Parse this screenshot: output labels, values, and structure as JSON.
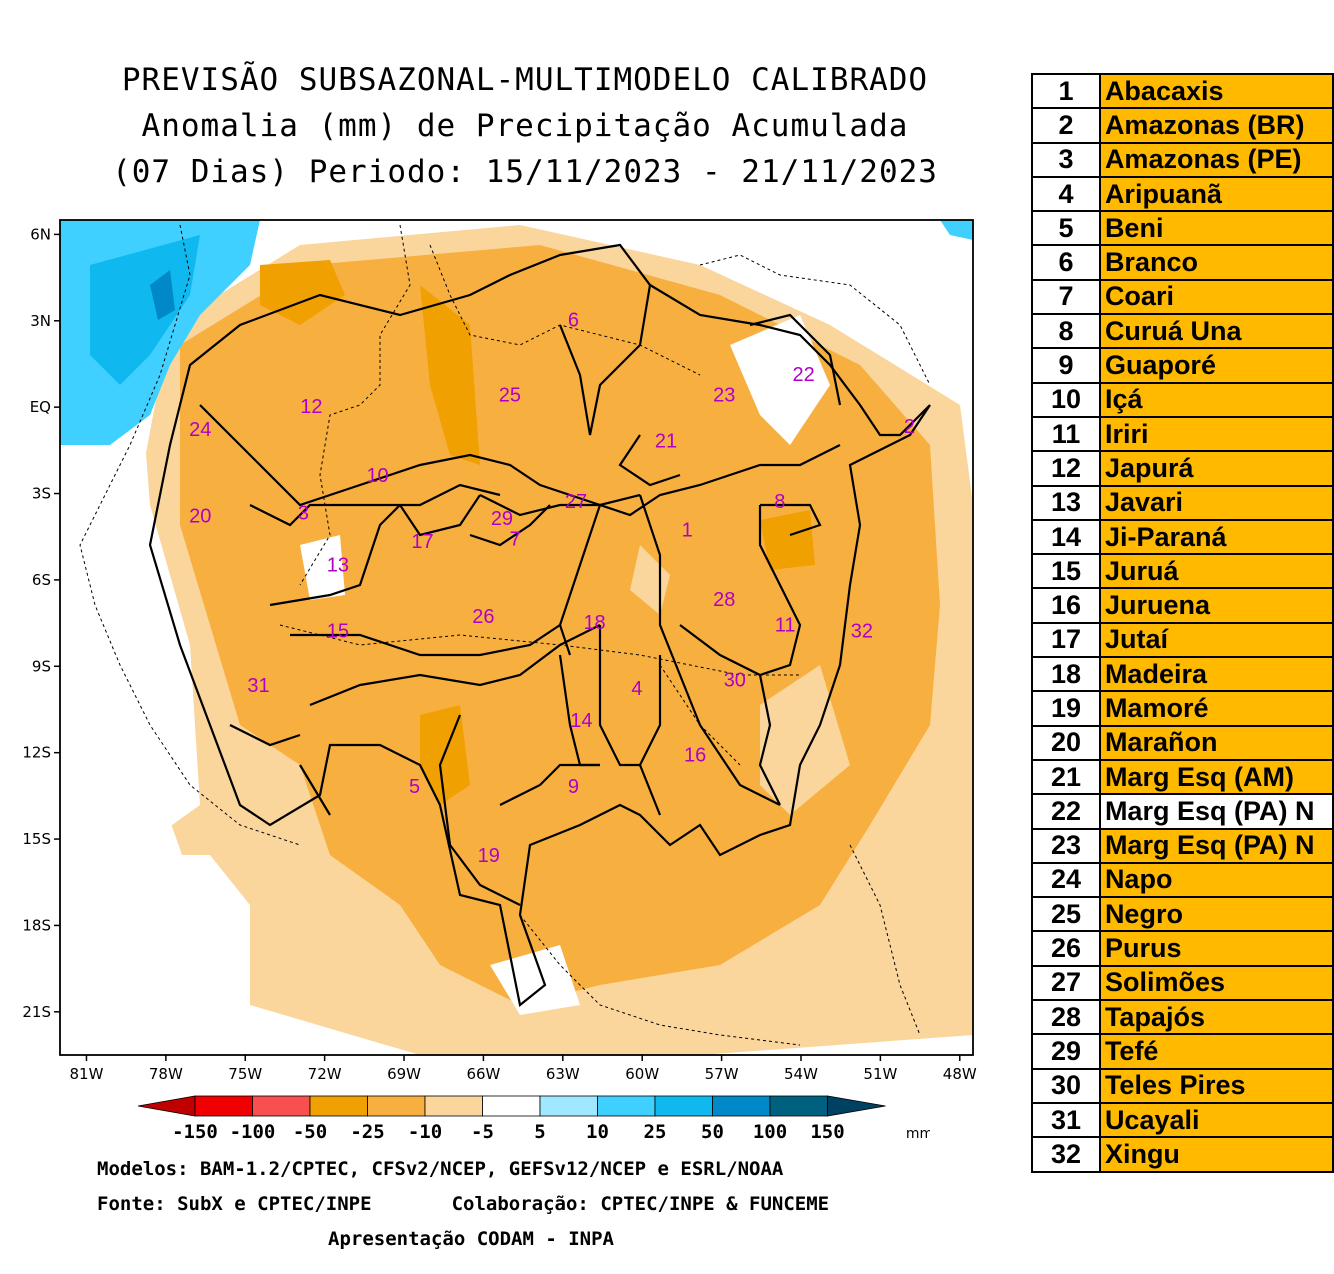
{
  "title": {
    "line1": "PREVISÃO SUBSAZONAL-MULTIMODELO CALIBRADO",
    "line2": "Anomalia (mm) de Precipitação Acumulada",
    "line3": "(07 Dias) Periodo: 15/11/2023 - 21/11/2023"
  },
  "map": {
    "lat_labels": [
      "6N",
      "3N",
      "EQ",
      "3S",
      "6S",
      "9S",
      "12S",
      "15S",
      "18S",
      "21S"
    ],
    "lon_labels": [
      "81W",
      "78W",
      "75W",
      "72W",
      "69W",
      "66W",
      "63W",
      "60W",
      "57W",
      "54W",
      "51W",
      "48W"
    ],
    "colors": {
      "dark_orange": "#F0A000",
      "orange": "#F7B040",
      "light_orange": "#FAD59C",
      "light_blue": "#40D0FF",
      "blue": "#10B8F0",
      "dark_blue": "#0088C8"
    },
    "basin_labels": [
      {
        "n": "1",
        "lon": -58.3,
        "lat": -4.5
      },
      {
        "n": "2",
        "lon": -49.9,
        "lat": -0.9
      },
      {
        "n": "3",
        "lon": -72.8,
        "lat": -3.9
      },
      {
        "n": "4",
        "lon": -60.2,
        "lat": -10.0
      },
      {
        "n": "5",
        "lon": -68.6,
        "lat": -13.4
      },
      {
        "n": "6",
        "lon": -62.6,
        "lat": 2.8
      },
      {
        "n": "7",
        "lon": -64.8,
        "lat": -4.8
      },
      {
        "n": "8",
        "lon": -54.8,
        "lat": -3.5
      },
      {
        "n": "9",
        "lon": -62.6,
        "lat": -13.4
      },
      {
        "n": "10",
        "lon": -70.0,
        "lat": -2.6
      },
      {
        "n": "11",
        "lon": -54.6,
        "lat": -7.8
      },
      {
        "n": "12",
        "lon": -72.5,
        "lat": -0.2
      },
      {
        "n": "13",
        "lon": -71.5,
        "lat": -5.7
      },
      {
        "n": "14",
        "lon": -62.3,
        "lat": -11.1
      },
      {
        "n": "15",
        "lon": -71.5,
        "lat": -8.0
      },
      {
        "n": "16",
        "lon": -58.0,
        "lat": -12.3
      },
      {
        "n": "17",
        "lon": -68.3,
        "lat": -4.9
      },
      {
        "n": "18",
        "lon": -61.8,
        "lat": -7.7
      },
      {
        "n": "19",
        "lon": -65.8,
        "lat": -15.8
      },
      {
        "n": "20",
        "lon": -76.7,
        "lat": -4.0
      },
      {
        "n": "21",
        "lon": -59.1,
        "lat": -1.4
      },
      {
        "n": "22",
        "lon": -53.9,
        "lat": 0.9
      },
      {
        "n": "23",
        "lon": -56.9,
        "lat": 0.2
      },
      {
        "n": "24",
        "lon": -76.7,
        "lat": -1.0
      },
      {
        "n": "25",
        "lon": -65.0,
        "lat": 0.2
      },
      {
        "n": "26",
        "lon": -66.0,
        "lat": -7.5
      },
      {
        "n": "27",
        "lon": -62.5,
        "lat": -3.5
      },
      {
        "n": "28",
        "lon": -56.9,
        "lat": -6.9
      },
      {
        "n": "29",
        "lon": -65.3,
        "lat": -4.1
      },
      {
        "n": "30",
        "lon": -56.5,
        "lat": -9.7
      },
      {
        "n": "31",
        "lon": -74.5,
        "lat": -9.9
      },
      {
        "n": "32",
        "lon": -51.7,
        "lat": -8.0
      }
    ]
  },
  "colorbar": {
    "ticks": [
      "-150",
      "-100",
      "-50",
      "-25",
      "-10",
      "-5",
      "5",
      "10",
      "25",
      "50",
      "100",
      "150"
    ],
    "unit": "mm",
    "colors": [
      "#C00000",
      "#F00000",
      "#F85050",
      "#F0A000",
      "#F7B040",
      "#FAD59C",
      "#FFFFFF",
      "#A0E8FF",
      "#40D0FF",
      "#10B8F0",
      "#0088C8",
      "#006080",
      "#004060"
    ]
  },
  "footer": {
    "line1": "Modelos: BAM-1.2/CPTEC, CFSv2/NCEP, GEFSv12/NCEP e ESRL/NOAA",
    "line2": "Fonte: SubX e CPTEC/INPE       Colaboração: CPTEC/INPE & FUNCEME",
    "line3": "Apresentação CODAM - INPA"
  },
  "legend": [
    {
      "n": "1",
      "name": "Abacaxis",
      "color": "#FFBA00"
    },
    {
      "n": "2",
      "name": "Amazonas (BR)",
      "color": "#FFBA00"
    },
    {
      "n": "3",
      "name": "Amazonas (PE)",
      "color": "#FFBA00"
    },
    {
      "n": "4",
      "name": "Aripuanã",
      "color": "#FFBA00"
    },
    {
      "n": "5",
      "name": "Beni",
      "color": "#FFBA00"
    },
    {
      "n": "6",
      "name": "Branco",
      "color": "#FFBA00"
    },
    {
      "n": "7",
      "name": "Coari",
      "color": "#FFBA00"
    },
    {
      "n": "8",
      "name": "Curuá Una",
      "color": "#FFBA00"
    },
    {
      "n": "9",
      "name": "Guaporé",
      "color": "#FFBA00"
    },
    {
      "n": "10",
      "name": "Içá",
      "color": "#FFBA00"
    },
    {
      "n": "11",
      "name": "Iriri",
      "color": "#FFBA00"
    },
    {
      "n": "12",
      "name": "Japurá",
      "color": "#FFBA00"
    },
    {
      "n": "13",
      "name": "Javari",
      "color": "#FFBA00"
    },
    {
      "n": "14",
      "name": "Ji-Paraná",
      "color": "#FFBA00"
    },
    {
      "n": "15",
      "name": "Juruá",
      "color": "#FFBA00"
    },
    {
      "n": "16",
      "name": "Juruena",
      "color": "#FFBA00"
    },
    {
      "n": "17",
      "name": "Jutaí",
      "color": "#FFBA00"
    },
    {
      "n": "18",
      "name": "Madeira",
      "color": "#FFBA00"
    },
    {
      "n": "19",
      "name": "Mamoré",
      "color": "#FFBA00"
    },
    {
      "n": "20",
      "name": "Marañon",
      "color": "#FFBA00"
    },
    {
      "n": "21",
      "name": "Marg Esq (AM)",
      "color": "#FFBA00"
    },
    {
      "n": "22",
      "name": "Marg Esq (PA) N",
      "color": "#FFFFFF"
    },
    {
      "n": "23",
      "name": "Marg Esq (PA) N",
      "color": "#FFBA00"
    },
    {
      "n": "24",
      "name": "Napo",
      "color": "#FFBA00"
    },
    {
      "n": "25",
      "name": "Negro",
      "color": "#FFBA00"
    },
    {
      "n": "26",
      "name": "Purus",
      "color": "#FFBA00"
    },
    {
      "n": "27",
      "name": "Solimões",
      "color": "#FFBA00"
    },
    {
      "n": "28",
      "name": "Tapajós",
      "color": "#FFBA00"
    },
    {
      "n": "29",
      "name": "Tefé",
      "color": "#FFBA00"
    },
    {
      "n": "30",
      "name": "Teles Pires",
      "color": "#FFBA00"
    },
    {
      "n": "31",
      "name": "Ucayali",
      "color": "#FFBA00"
    },
    {
      "n": "32",
      "name": "Xingu",
      "color": "#FFBA00"
    }
  ]
}
